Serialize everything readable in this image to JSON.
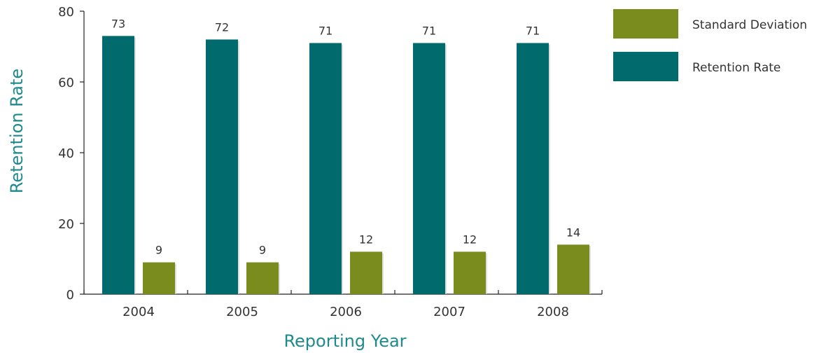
{
  "chart_data": {
    "type": "bar",
    "categories": [
      "2004",
      "2005",
      "2006",
      "2007",
      "2008"
    ],
    "series": [
      {
        "name": "Retention Rate",
        "values": [
          73,
          72,
          71,
          71,
          71
        ],
        "color": "#006a6d"
      },
      {
        "name": "Standard Deviation",
        "values": [
          9,
          9,
          12,
          12,
          14
        ],
        "color": "#7b8c1f"
      }
    ],
    "legend_order": [
      "Standard Deviation",
      "Retention Rate"
    ],
    "xlabel": "Reporting Year",
    "ylabel": "Retention Rate",
    "ylim": [
      0,
      80
    ],
    "yticks": [
      0,
      20,
      40,
      60,
      80
    ],
    "grid": false,
    "legend_position": "top-right",
    "axis_title_color": "#1f8a8c"
  }
}
